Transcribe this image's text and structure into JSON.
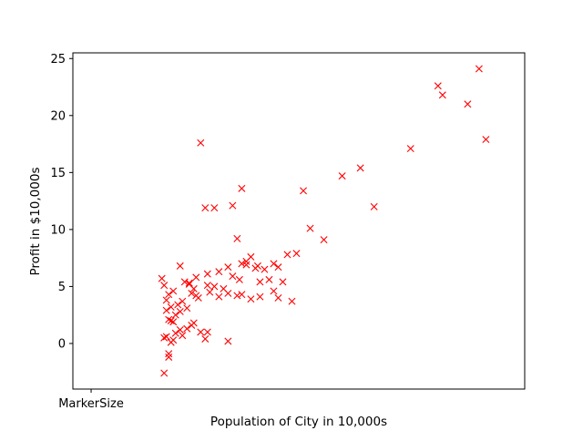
{
  "chart_data": {
    "type": "scatter",
    "xlabel": "Population of City in 10,000s",
    "ylabel": "Profit in $10,000s",
    "xlim": [
      4.2,
      24.0
    ],
    "ylim": [
      -4.0,
      25.5
    ],
    "x_tick_labels": [
      {
        "value": 5.0,
        "label": "MarkerSize"
      }
    ],
    "y_ticks": [
      0,
      5,
      10,
      15,
      20,
      25
    ],
    "marker": "x",
    "marker_color": "#ff0000",
    "series": [
      {
        "x": [
          8.2,
          8.4,
          11.0,
          12.4,
          11.6,
          10.1,
          12.0,
          12.3,
          14.6,
          15.2,
          17.4,
          14.3,
          16.0,
          16.8,
          19.0,
          20.2,
          20.4,
          21.5,
          22.3,
          22.0,
          10.0,
          10.4,
          11.2,
          11.6,
          9.8,
          11.4,
          11.0,
          11.8,
          12.2,
          12.6,
          13.0,
          13.2,
          14.0,
          13.6,
          13.4,
          13.0,
          8.1,
          8.2,
          8.3,
          8.5,
          8.4,
          8.6,
          8.8,
          8.7,
          8.9,
          9.0,
          9.2,
          9.4,
          9.6,
          9.5,
          9.7,
          9.3,
          9.1,
          8.9,
          8.6,
          8.4,
          8.3,
          8.2,
          8.7,
          9.0,
          9.2,
          9.4,
          9.8,
          10.0,
          10.2,
          10.4,
          10.6,
          10.8,
          11.0,
          11.2,
          11.4,
          11.6,
          12.0,
          12.4,
          12.8,
          13.2,
          13.8,
          10.6,
          8.9,
          9.3,
          10.1,
          9.6,
          10.1,
          11.5,
          11.8,
          8.5,
          9.5,
          8.6,
          8.3,
          8.4,
          8.5
        ],
        "y": [
          -2.6,
          -1.2,
          0.2,
          5.4,
          7.0,
          1.0,
          7.6,
          6.8,
          10.1,
          9.1,
          12.0,
          13.4,
          14.7,
          15.4,
          17.1,
          22.6,
          21.8,
          21.0,
          17.9,
          24.1,
          11.9,
          11.9,
          12.1,
          13.6,
          17.6,
          9.2,
          6.7,
          7.2,
          6.6,
          6.5,
          7.0,
          6.7,
          7.9,
          7.8,
          5.4,
          4.6,
          5.7,
          5.1,
          3.8,
          3.2,
          4.3,
          4.6,
          3.4,
          2.5,
          2.8,
          3.7,
          3.1,
          4.4,
          4.2,
          4.8,
          4.0,
          5.2,
          5.4,
          1.2,
          1.9,
          2.1,
          2.9,
          0.5,
          0.9,
          0.7,
          1.3,
          1.6,
          1.0,
          0.4,
          4.5,
          5.0,
          4.1,
          4.8,
          4.4,
          5.9,
          4.2,
          4.3,
          3.9,
          4.1,
          5.6,
          4.0,
          3.7,
          6.3,
          6.8,
          5.3,
          5.1,
          5.8,
          6.1,
          5.6,
          6.9,
          2.0,
          1.8,
          0.3,
          0.6,
          -0.9,
          0.1
        ]
      }
    ]
  }
}
